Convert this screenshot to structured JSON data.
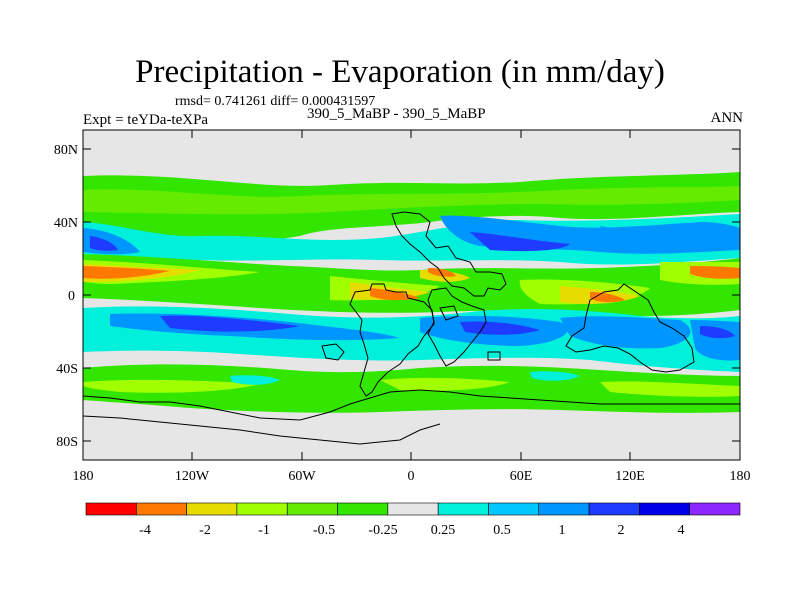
{
  "title": "Precipitation - Evaporation (in mm/day)",
  "stats": "rmsd= 0.741261 diff= 0.000431597",
  "experiment": "Expt = teYDa-teXPa",
  "periods": "390_5_MaBP - 390_5_MaBP",
  "season": "ANN",
  "lat_ticks": [
    "80N",
    "40N",
    "0",
    "40S",
    "80S"
  ],
  "lon_ticks": [
    "180",
    "120W",
    "60W",
    "0",
    "60E",
    "120E",
    "180"
  ],
  "colorbar": {
    "colors": [
      "#ff0000",
      "#ff7800",
      "#e6dc00",
      "#a0ff00",
      "#64eb00",
      "#32e600",
      "#e6e6e6",
      "#00f0dc",
      "#00c8ff",
      "#0096ff",
      "#1e3cff",
      "#0000e6",
      "#8c28ff"
    ],
    "labels": [
      "-4",
      "-2",
      "-1",
      "-0.5",
      "-0.25",
      "0.25",
      "0.5",
      "1",
      "2",
      "4"
    ]
  },
  "map_colors": {
    "background": "#e6e6e6",
    "green_dark": "#32e600",
    "green_mid": "#64eb00",
    "green_light": "#a0ff00",
    "yellow": "#e6dc00",
    "orange": "#ff7800",
    "red": "#ff0000",
    "cyan": "#00f0dc",
    "light_blue": "#00c8ff",
    "blue": "#0096ff",
    "deep_blue": "#1e3cff"
  }
}
